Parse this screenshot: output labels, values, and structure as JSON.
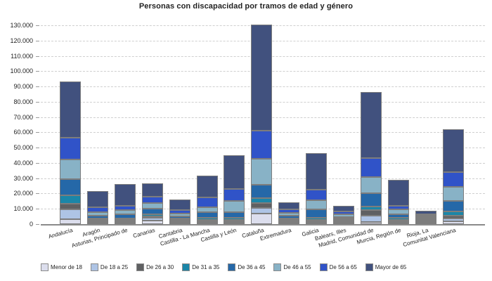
{
  "chart_data": {
    "type": "bar",
    "stacked": true,
    "title": "Personas con discapacidad por tramos de edad y género",
    "xlabel": "",
    "ylabel": "",
    "ylim": [
      0,
      130000
    ],
    "ytick_step": 10000,
    "y_tick_labels": [
      "0",
      "10.000",
      "20.000",
      "30.000",
      "40.000",
      "50.000",
      "60.000",
      "70.000",
      "80.000",
      "90.000",
      "100.000",
      "110.000",
      "120.000",
      "130.000"
    ],
    "grid": "horizontal-dashed",
    "legend_position": "bottom",
    "categories": [
      "Andalucía",
      "Aragón",
      "Asturias, Principado de",
      "Canarias",
      "Cantabria",
      "Castilla - La Mancha",
      "Castilla y León",
      "Cataluña",
      "Extremadura",
      "Galicia",
      "Balears, Illes",
      "Madrid, Comunidad de",
      "Murcia, Región de",
      "Rioja, La",
      "Comunitat Valenciana"
    ],
    "series": [
      {
        "name": "Menor de 18",
        "color": "#dcdeed",
        "values": [
          3200,
          400,
          400,
          2400,
          300,
          800,
          800,
          6700,
          500,
          1000,
          400,
          1300,
          700,
          300,
          1700
        ]
      },
      {
        "name": "De 18 a 25",
        "color": "#aec4e5",
        "values": [
          6500,
          400,
          400,
          1800,
          300,
          700,
          700,
          4000,
          400,
          900,
          300,
          4400,
          500,
          200,
          2200
        ]
      },
      {
        "name": "De 26 a 30",
        "color": "#5f6062",
        "values": [
          3800,
          300,
          300,
          800,
          200,
          800,
          800,
          3200,
          600,
          800,
          200,
          3600,
          1100,
          100,
          1800
        ]
      },
      {
        "name": "De 31 a 35",
        "color": "#1b86a8",
        "values": [
          5400,
          600,
          400,
          1500,
          200,
          1500,
          1500,
          3200,
          600,
          1400,
          300,
          2400,
          1200,
          100,
          2800
        ]
      },
      {
        "name": "De 36 a 45",
        "color": "#2568a8",
        "values": [
          10300,
          2000,
          2800,
          3400,
          1300,
          3400,
          3400,
          8600,
          1700,
          5600,
          1100,
          8600,
          2100,
          300,
          6900
        ]
      },
      {
        "name": "De 46 a 55",
        "color": "#88b2c6",
        "values": [
          12900,
          2300,
          2900,
          3800,
          2100,
          3500,
          7400,
          17200,
          2000,
          6000,
          1800,
          10500,
          3200,
          300,
          9200
        ]
      },
      {
        "name": "De 56 a 65",
        "color": "#3053c8",
        "values": [
          14300,
          3000,
          2800,
          4300,
          2000,
          6100,
          8000,
          18400,
          2200,
          6900,
          1600,
          12600,
          2700,
          400,
          9500
        ]
      },
      {
        "name": "Mayor de 65",
        "color": "#41517e",
        "values": [
          36900,
          10500,
          13800,
          8500,
          6900,
          14300,
          21900,
          69100,
          4600,
          23500,
          3800,
          43000,
          16900,
          2500,
          28100
        ]
      }
    ],
    "totals": [
      93300,
      19500,
      23800,
      26500,
      13300,
      31100,
      44500,
      130400,
      12600,
      46100,
      9500,
      86400,
      28400,
      4200,
      62200
    ]
  }
}
